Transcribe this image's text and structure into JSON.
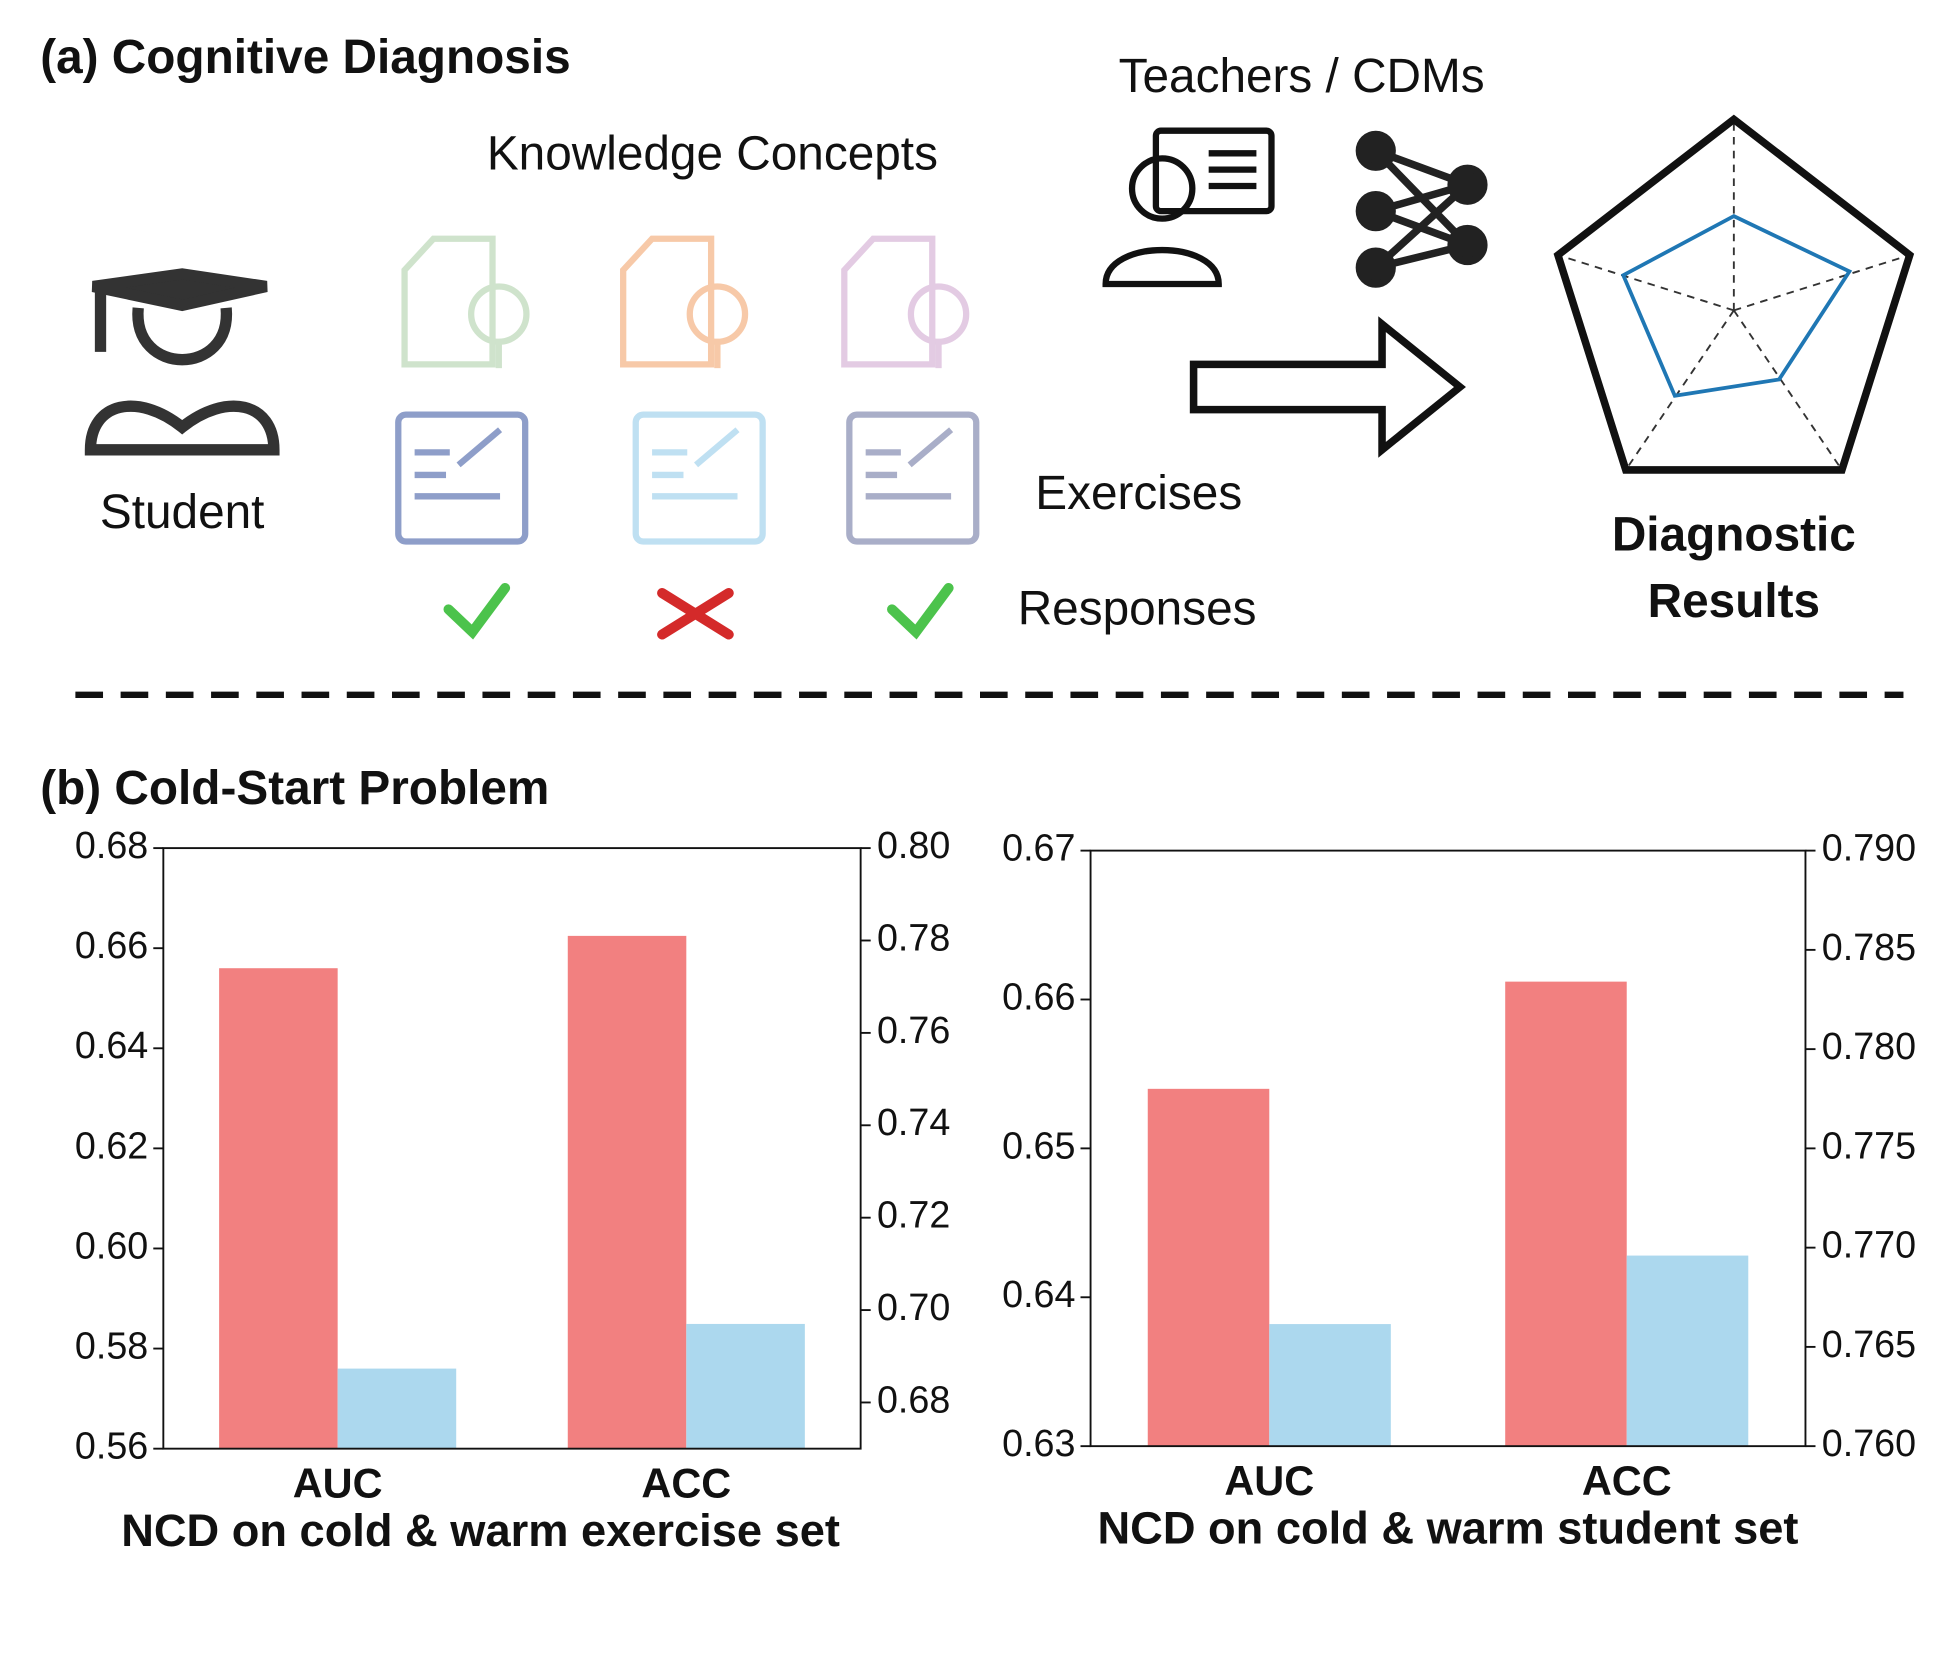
{
  "diagram": {
    "title_a": "(a) Cognitive Diagnosis",
    "knowledge_concepts": "Knowledge Concepts",
    "teachers": "Teachers / CDMs",
    "student": "Student",
    "exercises": "Exercises",
    "responses": "Responses",
    "results_line1": "Diagnostic",
    "results_line2": "Results",
    "title_b": "(b) Cold-Start Problem"
  },
  "chart_data": [
    {
      "type": "bar",
      "xlabel": "NCD on cold & warm exercise set",
      "categories": [
        "AUC",
        "ACC"
      ],
      "category_axes": [
        "y",
        "y2"
      ],
      "series": [
        {
          "color": "#f28080",
          "values": [
            0.656,
            0.781
          ]
        },
        {
          "color": "#acd8ee",
          "values": [
            0.576,
            0.697
          ]
        }
      ],
      "ylim": [
        0.56,
        0.68
      ],
      "yticks": [
        0.56,
        0.58,
        {
          "value": 0.6,
          "label": "0.60"
        },
        0.62,
        0.64,
        0.66,
        0.68
      ],
      "y2lim": [
        0.67,
        0.8
      ],
      "y2ticks": [
        0.68,
        {
          "value": 0.7,
          "label": "0.70"
        },
        0.72,
        0.74,
        0.76,
        0.78,
        {
          "value": 0.8,
          "label": "0.80"
        }
      ]
    },
    {
      "type": "bar",
      "xlabel": "NCD on cold & warm student set",
      "categories": [
        "AUC",
        "ACC"
      ],
      "category_axes": [
        "y",
        "y2"
      ],
      "series": [
        {
          "color": "#f28080",
          "values": [
            0.654,
            0.7834
          ]
        },
        {
          "color": "#acd8ee",
          "values": [
            0.6382,
            0.7696
          ]
        }
      ],
      "ylim": [
        0.63,
        0.67
      ],
      "yticks": [
        0.63,
        0.64,
        0.65,
        0.66,
        0.67
      ],
      "y2lim": [
        0.76,
        0.79
      ],
      "y2ticks": [
        {
          "value": 0.76,
          "label": "0.760"
        },
        0.765,
        {
          "value": 0.77,
          "label": "0.770"
        },
        0.775,
        {
          "value": 0.78,
          "label": "0.780"
        },
        0.785,
        {
          "value": 0.79,
          "label": "0.790"
        }
      ]
    }
  ]
}
